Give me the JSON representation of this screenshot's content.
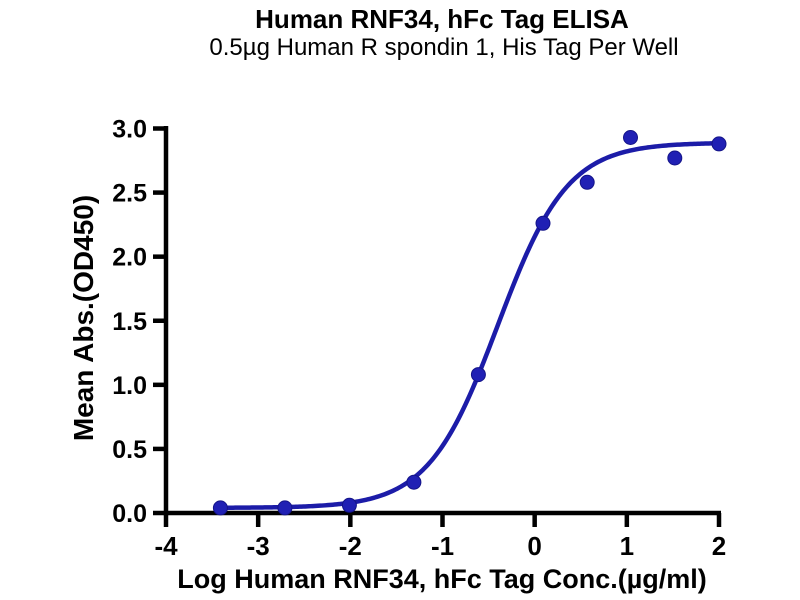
{
  "chart_data": {
    "type": "scatter",
    "title": "Human RNF34, hFc Tag ELISA",
    "subtitle": "0.5µg Human R spondin 1, His Tag Per Well",
    "xlabel": "Log Human RNF34, hFc Tag Conc.(µg/ml)",
    "ylabel": "Mean Abs.(OD450)",
    "xlim": [
      -4,
      2
    ],
    "ylim": [
      0,
      3
    ],
    "xtick_values": [
      -4,
      -3,
      -2,
      -1,
      0,
      1,
      2
    ],
    "xtick_labels": [
      "-4",
      "-3",
      "-2",
      "-1",
      "0",
      "1",
      "2"
    ],
    "ytick_values": [
      0,
      0.5,
      1,
      1.5,
      2,
      2.5,
      3
    ],
    "ytick_labels": [
      "0.0",
      "0.5",
      "1.0",
      "1.5",
      "2.0",
      "2.5",
      "3.0"
    ],
    "grid": false,
    "legend": "none",
    "series_name": "Human RNF34, hFc Tag",
    "points": [
      {
        "x": -3.41,
        "y": 0.04
      },
      {
        "x": -2.71,
        "y": 0.04
      },
      {
        "x": -2.01,
        "y": 0.06
      },
      {
        "x": -1.31,
        "y": 0.24
      },
      {
        "x": -0.61,
        "y": 1.08
      },
      {
        "x": 0.09,
        "y": 2.26
      },
      {
        "x": 0.57,
        "y": 2.58
      },
      {
        "x": 1.04,
        "y": 2.93
      },
      {
        "x": 1.52,
        "y": 2.77
      },
      {
        "x": 2.0,
        "y": 2.88
      }
    ],
    "curve_fit": {
      "model": "4PL sigmoid",
      "bottom": 0.04,
      "top": 2.89,
      "log_ec50": -0.4,
      "hill": 1.15,
      "x_range": [
        -3.41,
        2.0
      ]
    },
    "axis_color": "#000000",
    "curve_color": "#1c1ca8",
    "marker_color": "#2020b4",
    "background_color": "#ffffff"
  }
}
